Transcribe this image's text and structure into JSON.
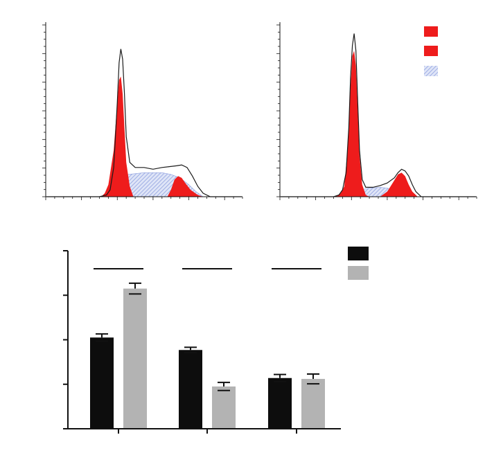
{
  "colors": {
    "red": "#ee1c1c",
    "hatch": "#8fa0e0",
    "outline": "#1a1a1a",
    "black_bar": "#0d0d0d",
    "gray_bar": "#b3b3b3",
    "axis": "#111111"
  },
  "chart_data": [
    {
      "type": "area",
      "legend": {
        "position": "top-right",
        "swatches": [
          "red",
          "red",
          "hatch"
        ]
      },
      "x_range": [
        0,
        110
      ],
      "y_range": [
        0,
        100
      ],
      "x_ticks": 22,
      "y_ticks": 24,
      "envelope": [
        [
          30,
          0
        ],
        [
          34,
          1
        ],
        [
          36,
          4
        ],
        [
          38,
          17
        ],
        [
          40,
          55
        ],
        [
          41,
          78
        ],
        [
          42,
          86
        ],
        [
          43,
          80
        ],
        [
          44,
          60
        ],
        [
          45,
          35
        ],
        [
          47,
          20
        ],
        [
          50,
          17
        ],
        [
          55,
          17
        ],
        [
          60,
          16
        ],
        [
          65,
          17
        ],
        [
          69,
          17.5
        ],
        [
          73,
          18
        ],
        [
          76,
          18.5
        ],
        [
          79,
          17
        ],
        [
          82,
          12
        ],
        [
          85,
          6
        ],
        [
          88,
          2
        ],
        [
          92,
          0
        ]
      ],
      "g1_peak": [
        [
          31,
          0
        ],
        [
          33,
          2
        ],
        [
          35,
          7
        ],
        [
          38,
          27
        ],
        [
          40,
          55
        ],
        [
          41,
          68
        ],
        [
          42,
          70
        ],
        [
          43,
          60
        ],
        [
          44,
          40
        ],
        [
          45,
          20
        ],
        [
          47,
          6
        ],
        [
          49,
          0
        ]
      ],
      "s_phase": [
        [
          34,
          0
        ],
        [
          38,
          4
        ],
        [
          42,
          10
        ],
        [
          46,
          13
        ],
        [
          55,
          14
        ],
        [
          65,
          14
        ],
        [
          70,
          13
        ],
        [
          75,
          11
        ],
        [
          80,
          7
        ],
        [
          84,
          3
        ],
        [
          88,
          0
        ]
      ],
      "g2_peak": [
        [
          68,
          0
        ],
        [
          70,
          4
        ],
        [
          72,
          10
        ],
        [
          74,
          12
        ],
        [
          76,
          11
        ],
        [
          78,
          8
        ],
        [
          81,
          4
        ],
        [
          85,
          1
        ],
        [
          88,
          0
        ]
      ]
    },
    {
      "type": "area",
      "x_range": [
        0,
        110
      ],
      "y_range": [
        0,
        100
      ],
      "x_ticks": 22,
      "y_ticks": 24,
      "envelope": [
        [
          30,
          0
        ],
        [
          33,
          1
        ],
        [
          35,
          4
        ],
        [
          37,
          14
        ],
        [
          38.5,
          40
        ],
        [
          39.5,
          70
        ],
        [
          40.5,
          88
        ],
        [
          41.5,
          95
        ],
        [
          42.5,
          85
        ],
        [
          43.5,
          55
        ],
        [
          44.5,
          27
        ],
        [
          46,
          10
        ],
        [
          48,
          5.5
        ],
        [
          52,
          5.5
        ],
        [
          56,
          6.5
        ],
        [
          60,
          8
        ],
        [
          64,
          11
        ],
        [
          66,
          14
        ],
        [
          68,
          16
        ],
        [
          70,
          15
        ],
        [
          72,
          12
        ],
        [
          74,
          7
        ],
        [
          76,
          3
        ],
        [
          79,
          0
        ]
      ],
      "g1_peak": [
        [
          31,
          0
        ],
        [
          34,
          2
        ],
        [
          36,
          6
        ],
        [
          38,
          30
        ],
        [
          39.5,
          65
        ],
        [
          40.5,
          82
        ],
        [
          41.5,
          85
        ],
        [
          42.5,
          76
        ],
        [
          43.5,
          50
        ],
        [
          44.5,
          24
        ],
        [
          46,
          7
        ],
        [
          48,
          1
        ],
        [
          50,
          0
        ]
      ],
      "s_phase": [
        [
          36,
          0
        ],
        [
          40,
          2
        ],
        [
          45,
          4
        ],
        [
          50,
          5
        ],
        [
          56,
          5.5
        ],
        [
          60,
          5
        ],
        [
          64,
          4
        ],
        [
          67,
          2
        ],
        [
          70,
          0
        ]
      ],
      "g2_peak": [
        [
          56,
          0
        ],
        [
          60,
          3
        ],
        [
          63,
          8
        ],
        [
          66,
          13
        ],
        [
          68,
          14
        ],
        [
          70,
          12
        ],
        [
          72,
          7
        ],
        [
          74,
          3
        ],
        [
          77,
          0
        ]
      ]
    },
    {
      "type": "bar",
      "categories": [
        "",
        "",
        ""
      ],
      "series": [
        {
          "values": [
            2.05,
            1.77,
            1.14
          ],
          "errors": [
            0.08,
            0.06,
            0.08
          ],
          "color": "black_bar"
        },
        {
          "values": [
            3.15,
            0.95,
            1.12
          ],
          "errors": [
            0.12,
            0.09,
            0.11
          ],
          "color": "gray_bar"
        }
      ],
      "ylim": [
        0,
        4
      ],
      "y_ticks": [
        0,
        1,
        2,
        3,
        4
      ],
      "significance_bars": 3,
      "legend": {
        "position": "top-right"
      }
    }
  ]
}
